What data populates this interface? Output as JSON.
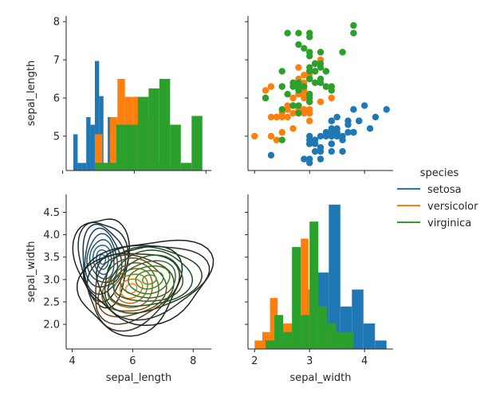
{
  "colors": {
    "setosa": "#1f77b4",
    "versicolor": "#ff7f0e",
    "virginica": "#2ca02c"
  },
  "legend": {
    "title": "species",
    "entries": [
      {
        "name": "setosa",
        "color": "#1f77b4"
      },
      {
        "name": "versicolor",
        "color": "#ff7f0e"
      },
      {
        "name": "virginica",
        "color": "#2ca02c"
      }
    ]
  },
  "chart_data": [
    {
      "type": "histogram",
      "panel": "sepal_length-diag",
      "xlim": [
        4.1,
        8.15
      ],
      "ylim": [
        4.1,
        8.15
      ],
      "ylabel": "sepal_length",
      "yticks": [
        5,
        6,
        7,
        8
      ],
      "grid": false,
      "series": [
        {
          "name": "setosa",
          "color": "#1f77b4",
          "bin_edges": [
            4.3,
            4.42,
            4.54,
            4.66,
            4.78,
            4.9,
            5.02,
            5.14,
            5.26,
            5.38,
            5.5,
            5.62,
            5.74
          ],
          "heights": [
            5.05,
            4.3,
            4.3,
            5.5,
            5.3,
            6.97,
            6.05,
            4.3,
            5.5,
            4.5,
            4.3,
            4.3
          ]
        },
        {
          "name": "versicolor",
          "color": "#ff7f0e",
          "bin_edges": [
            4.9,
            5.11,
            5.32,
            5.53,
            5.74,
            5.95,
            6.16,
            6.37,
            6.58,
            6.79,
            7.0
          ],
          "heights": [
            5.05,
            4.3,
            5.5,
            6.5,
            6.03,
            6.03,
            5.3,
            5.5,
            4.3,
            4.3
          ]
        },
        {
          "name": "virginica",
          "color": "#2ca02c",
          "bin_edges": [
            4.9,
            5.2,
            5.5,
            5.8,
            6.1,
            6.4,
            6.7,
            7.0,
            7.3,
            7.6,
            7.9
          ],
          "heights": [
            4.3,
            4.3,
            5.3,
            5.3,
            6.03,
            6.25,
            6.5,
            5.3,
            4.3,
            5.53
          ]
        }
      ]
    },
    {
      "type": "scatter",
      "panel": "sepal_width-vs-sepal_length",
      "xlim": [
        1.88,
        4.52
      ],
      "ylim": [
        4.1,
        8.15
      ],
      "xticks": [
        2,
        3,
        4
      ],
      "series": [
        {
          "name": "setosa",
          "color": "#1f77b4",
          "points": [
            [
              3.5,
              5.1
            ],
            [
              3.0,
              4.9
            ],
            [
              3.2,
              4.7
            ],
            [
              3.1,
              4.6
            ],
            [
              3.6,
              5.0
            ],
            [
              3.9,
              5.4
            ],
            [
              3.4,
              4.6
            ],
            [
              3.4,
              5.0
            ],
            [
              2.9,
              4.4
            ],
            [
              3.1,
              4.9
            ],
            [
              3.7,
              5.4
            ],
            [
              3.4,
              4.8
            ],
            [
              3.0,
              4.8
            ],
            [
              3.0,
              4.3
            ],
            [
              4.0,
              5.8
            ],
            [
              4.4,
              5.7
            ],
            [
              3.9,
              5.4
            ],
            [
              3.5,
              5.1
            ],
            [
              3.8,
              5.7
            ],
            [
              3.8,
              5.1
            ],
            [
              3.4,
              5.4
            ],
            [
              3.7,
              5.1
            ],
            [
              3.6,
              4.6
            ],
            [
              3.3,
              5.1
            ],
            [
              3.4,
              4.8
            ],
            [
              3.0,
              5.0
            ],
            [
              3.4,
              5.0
            ],
            [
              3.5,
              5.2
            ],
            [
              3.4,
              5.2
            ],
            [
              3.2,
              4.7
            ],
            [
              3.1,
              4.8
            ],
            [
              3.4,
              5.4
            ],
            [
              4.1,
              5.2
            ],
            [
              4.2,
              5.5
            ],
            [
              3.1,
              4.9
            ],
            [
              3.2,
              5.0
            ],
            [
              3.5,
              5.5
            ],
            [
              3.6,
              4.9
            ],
            [
              3.0,
              4.4
            ],
            [
              3.4,
              5.1
            ],
            [
              3.5,
              5.0
            ],
            [
              2.3,
              4.5
            ],
            [
              3.2,
              4.4
            ],
            [
              3.5,
              5.0
            ],
            [
              3.8,
              5.1
            ],
            [
              3.0,
              4.8
            ],
            [
              3.8,
              5.1
            ],
            [
              3.2,
              4.6
            ],
            [
              3.7,
              5.3
            ],
            [
              3.3,
              5.0
            ]
          ]
        },
        {
          "name": "versicolor",
          "color": "#ff7f0e",
          "points": [
            [
              3.2,
              7.0
            ],
            [
              3.2,
              6.4
            ],
            [
              3.1,
              6.9
            ],
            [
              2.3,
              5.5
            ],
            [
              2.8,
              6.5
            ],
            [
              2.8,
              5.7
            ],
            [
              3.3,
              6.3
            ],
            [
              2.4,
              4.9
            ],
            [
              2.9,
              6.6
            ],
            [
              2.7,
              5.2
            ],
            [
              2.0,
              5.0
            ],
            [
              3.0,
              5.9
            ],
            [
              2.2,
              6.0
            ],
            [
              2.9,
              6.1
            ],
            [
              2.9,
              5.6
            ],
            [
              3.1,
              6.7
            ],
            [
              3.0,
              5.6
            ],
            [
              2.7,
              5.8
            ],
            [
              2.2,
              6.2
            ],
            [
              2.5,
              5.6
            ],
            [
              3.2,
              5.9
            ],
            [
              2.8,
              6.1
            ],
            [
              2.5,
              6.3
            ],
            [
              2.8,
              6.1
            ],
            [
              2.9,
              6.4
            ],
            [
              3.0,
              6.6
            ],
            [
              2.8,
              6.8
            ],
            [
              3.0,
              6.7
            ],
            [
              2.9,
              6.0
            ],
            [
              2.6,
              5.7
            ],
            [
              2.4,
              5.5
            ],
            [
              2.4,
              5.5
            ],
            [
              2.7,
              5.8
            ],
            [
              2.7,
              6.0
            ],
            [
              3.0,
              5.4
            ],
            [
              3.4,
              6.0
            ],
            [
              3.1,
              6.7
            ],
            [
              2.3,
              6.3
            ],
            [
              3.0,
              5.6
            ],
            [
              2.5,
              5.5
            ],
            [
              2.6,
              5.5
            ],
            [
              3.0,
              6.1
            ],
            [
              2.6,
              5.8
            ],
            [
              2.3,
              5.0
            ],
            [
              2.7,
              5.6
            ],
            [
              3.0,
              5.7
            ],
            [
              2.9,
              5.7
            ],
            [
              2.9,
              6.2
            ],
            [
              2.5,
              5.1
            ],
            [
              2.8,
              5.7
            ]
          ]
        },
        {
          "name": "virginica",
          "color": "#2ca02c",
          "points": [
            [
              3.3,
              6.3
            ],
            [
              2.7,
              5.8
            ],
            [
              3.0,
              7.1
            ],
            [
              2.9,
              6.3
            ],
            [
              3.0,
              6.5
            ],
            [
              3.0,
              7.6
            ],
            [
              2.5,
              4.9
            ],
            [
              2.9,
              7.3
            ],
            [
              2.5,
              6.7
            ],
            [
              3.6,
              7.2
            ],
            [
              3.2,
              6.5
            ],
            [
              2.7,
              6.4
            ],
            [
              3.0,
              6.8
            ],
            [
              2.5,
              5.7
            ],
            [
              2.8,
              5.8
            ],
            [
              3.2,
              6.4
            ],
            [
              3.0,
              6.5
            ],
            [
              3.8,
              7.7
            ],
            [
              2.6,
              7.7
            ],
            [
              2.2,
              6.0
            ],
            [
              3.2,
              6.9
            ],
            [
              2.8,
              5.6
            ],
            [
              2.8,
              7.7
            ],
            [
              2.7,
              6.3
            ],
            [
              3.3,
              6.7
            ],
            [
              3.2,
              7.2
            ],
            [
              2.8,
              6.2
            ],
            [
              3.0,
              6.1
            ],
            [
              2.8,
              6.4
            ],
            [
              3.0,
              7.2
            ],
            [
              2.8,
              7.4
            ],
            [
              3.8,
              7.9
            ],
            [
              2.8,
              6.4
            ],
            [
              2.8,
              6.3
            ],
            [
              2.6,
              6.1
            ],
            [
              3.0,
              7.7
            ],
            [
              3.4,
              6.3
            ],
            [
              3.1,
              6.4
            ],
            [
              3.0,
              6.0
            ],
            [
              3.1,
              6.9
            ],
            [
              3.1,
              6.7
            ],
            [
              3.1,
              6.9
            ],
            [
              2.7,
              5.8
            ],
            [
              3.2,
              6.8
            ],
            [
              3.3,
              6.7
            ],
            [
              3.0,
              6.7
            ],
            [
              2.5,
              6.3
            ],
            [
              3.0,
              6.5
            ],
            [
              3.4,
              6.2
            ],
            [
              3.0,
              5.9
            ]
          ]
        }
      ]
    },
    {
      "type": "kde",
      "panel": "sepal_length-vs-sepal_width",
      "xlim": [
        3.8,
        8.6
      ],
      "ylim": [
        1.45,
        4.9
      ],
      "xlabel": "sepal_length",
      "ylabel": "sepal_width",
      "xticks": [
        4,
        6,
        8
      ],
      "yticks": [
        2.0,
        2.5,
        3.0,
        3.5,
        4.0,
        4.5
      ],
      "series": [
        {
          "name": "setosa",
          "color": "#1f77b4",
          "center": [
            5.0,
            3.45
          ],
          "spread": [
            0.42,
            0.46
          ],
          "angle": 0.3,
          "levels": 9
        },
        {
          "name": "versicolor",
          "color": "#ff7f0e",
          "center": [
            5.95,
            2.8
          ],
          "spread": [
            0.8,
            0.45
          ],
          "angle": 0.35,
          "levels": 9
        },
        {
          "name": "virginica",
          "color": "#2ca02c",
          "center": [
            6.55,
            3.0
          ],
          "spread": [
            0.95,
            0.42
          ],
          "angle": 0.2,
          "levels": 9
        }
      ]
    },
    {
      "type": "histogram",
      "panel": "sepal_width-diag",
      "xlim": [
        1.88,
        4.52
      ],
      "xlabel": "sepal_width",
      "xticks": [
        2,
        3,
        4
      ],
      "series": [
        {
          "name": "setosa",
          "color": "#1f77b4",
          "bin_edges": [
            2.3,
            2.51,
            2.72,
            2.93,
            3.14,
            3.35,
            3.56,
            3.77,
            3.98,
            4.19,
            4.4
          ],
          "heights": [
            1,
            0,
            0,
            7,
            9,
            17,
            5,
            7,
            3,
            1
          ]
        },
        {
          "name": "versicolor",
          "color": "#ff7f0e",
          "bin_edges": [
            2.0,
            2.14,
            2.28,
            2.42,
            2.56,
            2.7,
            2.84,
            2.98,
            3.12,
            3.26,
            3.4
          ],
          "heights": [
            1,
            2,
            6,
            3,
            3,
            8,
            13,
            7,
            5,
            2
          ]
        },
        {
          "name": "virginica",
          "color": "#2ca02c",
          "bin_edges": [
            2.2,
            2.36,
            2.52,
            2.68,
            2.84,
            3.0,
            3.16,
            3.32,
            3.48,
            3.64,
            3.8
          ],
          "heights": [
            1,
            4,
            2,
            12,
            4,
            15,
            5,
            3,
            2,
            2
          ]
        }
      ]
    }
  ]
}
